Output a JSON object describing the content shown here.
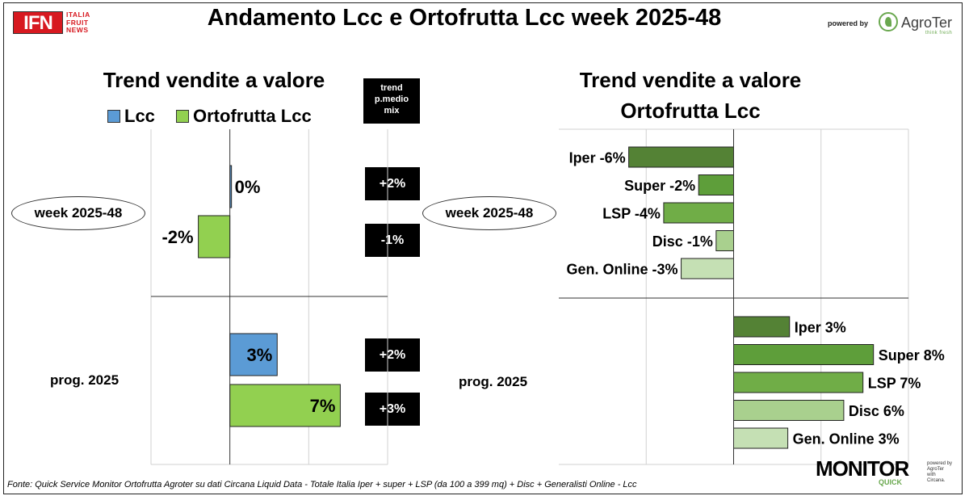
{
  "header": {
    "title": "Andamento Lcc e Ortofrutta Lcc week 2025-48",
    "logo_left": "IFN",
    "logo_left_sub": [
      "ITALIA",
      "FRUIT",
      "NEWS"
    ],
    "powered_by": "powered by",
    "logo_right": "AgroTer",
    "logo_right_tag": "think fresh"
  },
  "left_panel": {
    "title": "Trend vendite a valore",
    "legend": [
      "Lcc",
      "Ortofrutta Lcc"
    ],
    "trend_header": [
      "trend",
      "p.medio",
      "mix"
    ],
    "rows": [
      "week 2025-48",
      "prog. 2025"
    ]
  },
  "right_panel": {
    "title_line1": "Trend vendite a valore",
    "title_line2": "Ortofrutta Lcc",
    "rows": [
      "week 2025-48",
      "prog. 2025"
    ]
  },
  "footer": {
    "source": "Fonte: Quick Service Monitor Ortofrutta Agroter su dati Circana Liquid Data - Totale Italia Iper + super + LSP (da 100 a 399 mq) + Disc + Generalisti Online - Lcc",
    "monitor": "MONITOR",
    "monitor_sub": "QUICK",
    "monitor_side": [
      "powered by",
      "AgroTer",
      "with",
      "Circana."
    ]
  },
  "colors": {
    "lcc": "#5b9bd5",
    "ortofrutta": "#92d050",
    "iper": "#548235",
    "super": "#5e9e3a",
    "lsp": "#70ad47",
    "disc": "#a9d08e",
    "online": "#c5e0b4"
  },
  "chart_data": [
    {
      "type": "bar",
      "orientation": "horizontal",
      "title": "Trend vendite a valore",
      "categories": [
        "week 2025-48",
        "prog. 2025"
      ],
      "series": [
        {
          "name": "Lcc",
          "values": [
            0,
            3
          ],
          "labels": [
            "0%",
            "3%"
          ]
        },
        {
          "name": "Ortofrutta Lcc",
          "values": [
            -2,
            7
          ],
          "labels": [
            "-2%",
            "7%"
          ]
        }
      ],
      "trend_p_medio_mix": {
        "header": "trend p.medio mix",
        "values": [
          "+2%",
          "-1%",
          "+2%",
          "+3%"
        ]
      },
      "xlim": [
        -5,
        10
      ],
      "grid": true
    },
    {
      "type": "bar",
      "orientation": "horizontal",
      "title": "Trend vendite a valore Ortofrutta Lcc",
      "groups": [
        {
          "name": "week 2025-48",
          "bars": [
            {
              "label": "Iper -6%",
              "value": -6,
              "color": "#548235"
            },
            {
              "label": "Super -2%",
              "value": -2,
              "color": "#5e9e3a"
            },
            {
              "label": "LSP -4%",
              "value": -4,
              "color": "#70ad47"
            },
            {
              "label": "Disc -1%",
              "value": -1,
              "color": "#a9d08e"
            },
            {
              "label": "Gen. Online -3%",
              "value": -3,
              "color": "#c5e0b4"
            }
          ]
        },
        {
          "name": "prog. 2025",
          "bars": [
            {
              "label": "Iper 3%",
              "value": 3.2,
              "color": "#548235"
            },
            {
              "label": "Super 8%",
              "value": 8,
              "color": "#5e9e3a"
            },
            {
              "label": "LSP 7%",
              "value": 7.4,
              "color": "#70ad47"
            },
            {
              "label": "Disc 6%",
              "value": 6.3,
              "color": "#a9d08e"
            },
            {
              "label": "Gen. Online 3%",
              "value": 3.1,
              "color": "#c5e0b4"
            }
          ]
        }
      ],
      "xlim": [
        -10,
        10
      ],
      "grid": true
    }
  ]
}
